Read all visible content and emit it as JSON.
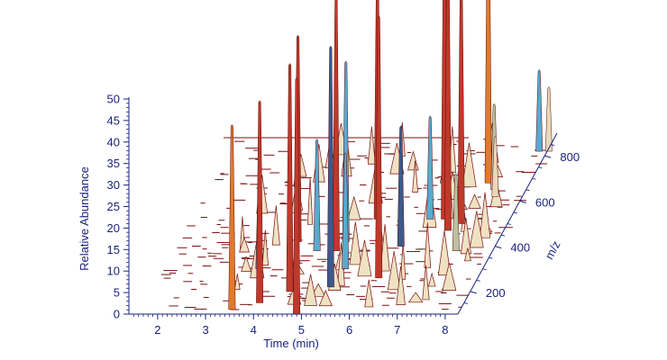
{
  "chart_data": {
    "type": "3d-waterfall",
    "title": "",
    "axes": {
      "x": {
        "label": "Time (min)",
        "range": [
          1.4,
          8.1
        ],
        "ticks": [
          2,
          3,
          4,
          5,
          6,
          7,
          8
        ]
      },
      "y": {
        "label": "Relative Abundance",
        "range": [
          0,
          50
        ],
        "ticks": [
          0,
          5,
          10,
          15,
          20,
          25,
          30,
          35,
          40,
          45,
          50
        ]
      },
      "z": {
        "label": "m/z",
        "range": [
          100,
          900
        ],
        "ticks": [
          200,
          400,
          600,
          800
        ]
      }
    },
    "grid": false,
    "legend": "none",
    "colors": {
      "axis": "#1a237e",
      "outline": "#7a0f0f",
      "red": "#c0392b",
      "orange": "#e07a2c",
      "blue": "#5aa9cf",
      "dark_blue": "#3c5a8c",
      "beige": "#e8d9b8",
      "sage": "#b9c3a0"
    },
    "peaks": [
      {
        "t": 3.5,
        "mz": 120,
        "abundance": 43,
        "color": "orange"
      },
      {
        "t": 3.6,
        "mz": 300,
        "abundance": 20,
        "color": "blue"
      },
      {
        "t": 4.0,
        "mz": 150,
        "abundance": 47,
        "color": "red"
      },
      {
        "t": 4.1,
        "mz": 420,
        "abundance": 48,
        "color": "red"
      },
      {
        "t": 4.5,
        "mz": 200,
        "abundance": 53,
        "color": "red"
      },
      {
        "t": 4.6,
        "mz": 380,
        "abundance": 26,
        "color": "blue"
      },
      {
        "t": 4.9,
        "mz": 100,
        "abundance": 55,
        "color": "red"
      },
      {
        "t": 5.0,
        "mz": 380,
        "abundance": 60,
        "color": "red"
      },
      {
        "t": 5.1,
        "mz": 420,
        "abundance": 42,
        "color": "blue"
      },
      {
        "t": 5.3,
        "mz": 220,
        "abundance": 56,
        "color": "dark_blue"
      },
      {
        "t": 5.4,
        "mz": 300,
        "abundance": 27,
        "color": "blue"
      },
      {
        "t": 5.5,
        "mz": 520,
        "abundance": 58,
        "color": "red"
      },
      {
        "t": 6.2,
        "mz": 260,
        "abundance": 61,
        "color": "red"
      },
      {
        "t": 6.3,
        "mz": 400,
        "abundance": 28,
        "color": "dark_blue"
      },
      {
        "t": 6.6,
        "mz": 520,
        "abundance": 24,
        "color": "blue"
      },
      {
        "t": 6.9,
        "mz": 520,
        "abundance": 68,
        "color": "red"
      },
      {
        "t": 7.1,
        "mz": 470,
        "abundance": 66,
        "color": "red"
      },
      {
        "t": 7.3,
        "mz": 500,
        "abundance": 57,
        "color": "red"
      },
      {
        "t": 7.4,
        "mz": 680,
        "abundance": 64,
        "color": "orange"
      },
      {
        "t": 7.5,
        "mz": 380,
        "abundance": 18,
        "color": "sage"
      },
      {
        "t": 7.6,
        "mz": 650,
        "abundance": 20,
        "color": "sage"
      },
      {
        "t": 7.7,
        "mz": 620,
        "abundance": 14,
        "color": "beige"
      },
      {
        "t": 8.1,
        "mz": 820,
        "abundance": 19,
        "color": "blue"
      },
      {
        "t": 8.3,
        "mz": 820,
        "abundance": 15,
        "color": "beige"
      }
    ]
  }
}
